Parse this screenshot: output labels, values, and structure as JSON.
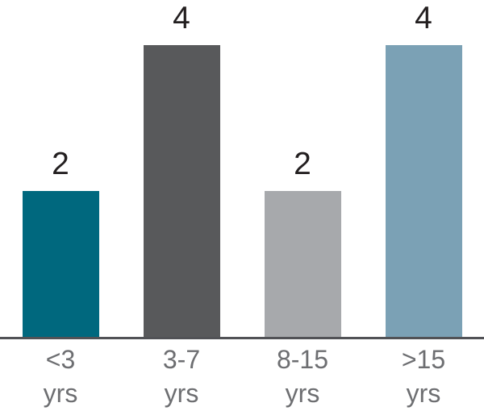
{
  "chart_data": {
    "type": "bar",
    "categories": [
      "<3 yrs",
      "3-7 yrs",
      "8-15 yrs",
      ">15 yrs"
    ],
    "categories_lines": [
      [
        "<3",
        "yrs"
      ],
      [
        "3-7",
        "yrs"
      ],
      [
        "8-15",
        "yrs"
      ],
      [
        ">15",
        "yrs"
      ]
    ],
    "values": [
      2,
      4,
      2,
      4
    ],
    "value_labels": [
      "2",
      "4",
      "2",
      "4"
    ],
    "title": "",
    "xlabel": "",
    "ylabel": "",
    "ylim": [
      0,
      4
    ],
    "grid": false,
    "legend": false,
    "bar_colors": [
      "#00687E",
      "#58595B",
      "#A7A9AC",
      "#7BA1B5"
    ],
    "value_label_color": "#231F20",
    "tick_label_color": "#6D6E71",
    "axis_line_color": "#515256",
    "background_color": "#FFFFFF"
  }
}
